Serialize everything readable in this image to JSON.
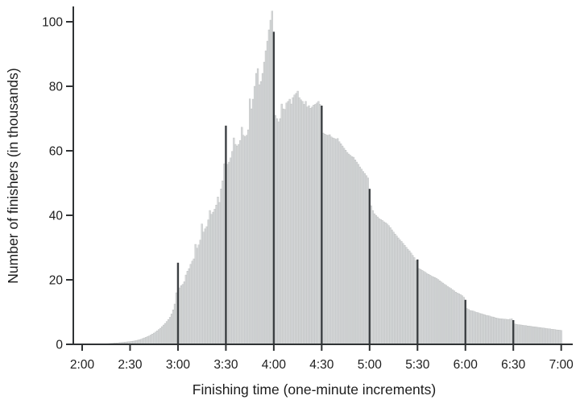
{
  "chart_data": {
    "type": "bar",
    "title": "",
    "xlabel": "Finishing time (one-minute increments)",
    "ylabel": "Number of finishers (in thousands)",
    "bin_minutes": 1,
    "x_start_label": "2:00",
    "x_end_label": "7:00",
    "x_tick_labels": [
      "2:00",
      "2:30",
      "3:00",
      "3:30",
      "4:00",
      "4:30",
      "5:00",
      "5:30",
      "6:00",
      "6:30",
      "7:00"
    ],
    "x_tick_minutes": [
      0,
      30,
      60,
      90,
      120,
      150,
      180,
      210,
      240,
      270,
      300
    ],
    "y_ticks": [
      0,
      20,
      40,
      60,
      80,
      100
    ],
    "ylim": [
      0,
      105
    ],
    "grid": false,
    "legend": "none",
    "highlight_times": [
      "3:00",
      "3:30",
      "4:00",
      "4:30",
      "5:00",
      "5:30",
      "6:00",
      "6:30"
    ],
    "highlight_indices": [
      60,
      90,
      120,
      150,
      180,
      210,
      240,
      270
    ],
    "values": [
      0,
      0,
      0,
      0,
      0,
      0,
      0.05,
      0.05,
      0.08,
      0.1,
      0.1,
      0.12,
      0.13,
      0.15,
      0.17,
      0.2,
      0.22,
      0.25,
      0.3,
      0.35,
      0.4,
      0.42,
      0.45,
      0.5,
      0.55,
      0.6,
      0.65,
      0.7,
      0.75,
      0.8,
      0.85,
      0.92,
      1.0,
      1.1,
      1.2,
      1.3,
      1.45,
      1.6,
      1.8,
      2.0,
      2.2,
      2.4,
      2.6,
      2.9,
      3.2,
      3.5,
      3.8,
      4.2,
      4.6,
      5.0,
      5.5,
      6.0,
      6.5,
      7.1,
      7.7,
      8.4,
      9.4,
      10.7,
      12.5,
      16.0,
      25.3,
      17.5,
      18.2,
      18.6,
      19.4,
      21.5,
      22.7,
      23.5,
      24.8,
      25.8,
      26.5,
      31.0,
      29.8,
      30.8,
      32.3,
      37.3,
      34.8,
      35.8,
      36.5,
      38.6,
      41.5,
      40.3,
      41.0,
      41.9,
      43.2,
      45.7,
      44.0,
      48.2,
      50.7,
      56.0,
      67.8,
      55.8,
      56.5,
      57.8,
      59.8,
      64.0,
      62.0,
      61.5,
      62.0,
      63.2,
      67.3,
      64.8,
      64.4,
      64.8,
      66.5,
      76.1,
      73.0,
      76.0,
      80.0,
      84.0,
      85.5,
      80.5,
      81.5,
      84.0,
      87.5,
      91.0,
      94.0,
      97.5,
      100.5,
      103.3,
      96.9,
      71.0,
      70.0,
      69.0,
      70.0,
      74.5,
      73.0,
      72.8,
      74.8,
      75.3,
      76.0,
      74.5,
      76.5,
      77.3,
      77.8,
      78.5,
      76.5,
      75.8,
      75.3,
      74.4,
      75.3,
      73.6,
      74.0,
      73.2,
      73.6,
      74.2,
      74.4,
      74.8,
      75.3,
      74.4,
      74.0,
      65.5,
      65.2,
      64.9,
      64.8,
      65.0,
      64.3,
      64.0,
      63.8,
      63.6,
      63.8,
      62.8,
      62.2,
      61.5,
      60.8,
      60.2,
      59.5,
      59.0,
      58.6,
      58.2,
      58.0,
      57.2,
      56.5,
      55.8,
      55.0,
      54.3,
      53.6,
      53.0,
      52.3,
      51.6,
      48.2,
      43.0,
      41.5,
      40.5,
      40.0,
      39.5,
      39.0,
      38.7,
      38.4,
      38.0,
      37.7,
      37.3,
      36.8,
      36.2,
      35.5,
      34.8,
      34.2,
      33.6,
      33.0,
      32.4,
      31.9,
      31.3,
      30.7,
      30.1,
      29.5,
      29.0,
      28.3,
      27.6,
      26.9,
      26.0,
      26.3,
      23.5,
      23.2,
      22.9,
      22.6,
      22.3,
      21.9,
      21.7,
      21.4,
      21.1,
      20.9,
      20.7,
      20.4,
      20.1,
      19.7,
      19.3,
      19.0,
      18.6,
      18.3,
      17.9,
      17.6,
      17.3,
      16.9,
      16.6,
      16.2,
      15.9,
      15.7,
      15.4,
      15.1,
      14.6,
      13.8,
      11.1,
      10.8,
      10.5,
      10.4,
      10.3,
      10.1,
      9.9,
      9.8,
      9.6,
      9.5,
      9.3,
      9.2,
      9.0,
      8.9,
      8.8,
      8.6,
      8.5,
      8.4,
      8.2,
      8.1,
      8.0,
      7.95,
      7.9,
      7.85,
      7.8,
      7.75,
      7.7,
      7.8,
      7.9,
      7.5,
      6.3,
      6.2,
      6.1,
      6.05,
      6.0,
      5.9,
      5.85,
      5.8,
      5.7,
      5.65,
      5.6,
      5.5,
      5.45,
      5.4,
      5.3,
      5.25,
      5.2,
      5.1,
      5.05,
      5.0,
      4.9,
      4.85,
      4.8,
      4.7,
      4.65,
      4.6,
      4.5,
      4.45,
      4.4,
      4.3
    ]
  },
  "colors": {
    "background": "#ffffff",
    "bar_fill": "#d6d8d9",
    "bar_edge": "#b2b5b6",
    "highlight_bar": "#3b3f42",
    "axis": "#2f3234",
    "text": "#1d1d1d"
  }
}
